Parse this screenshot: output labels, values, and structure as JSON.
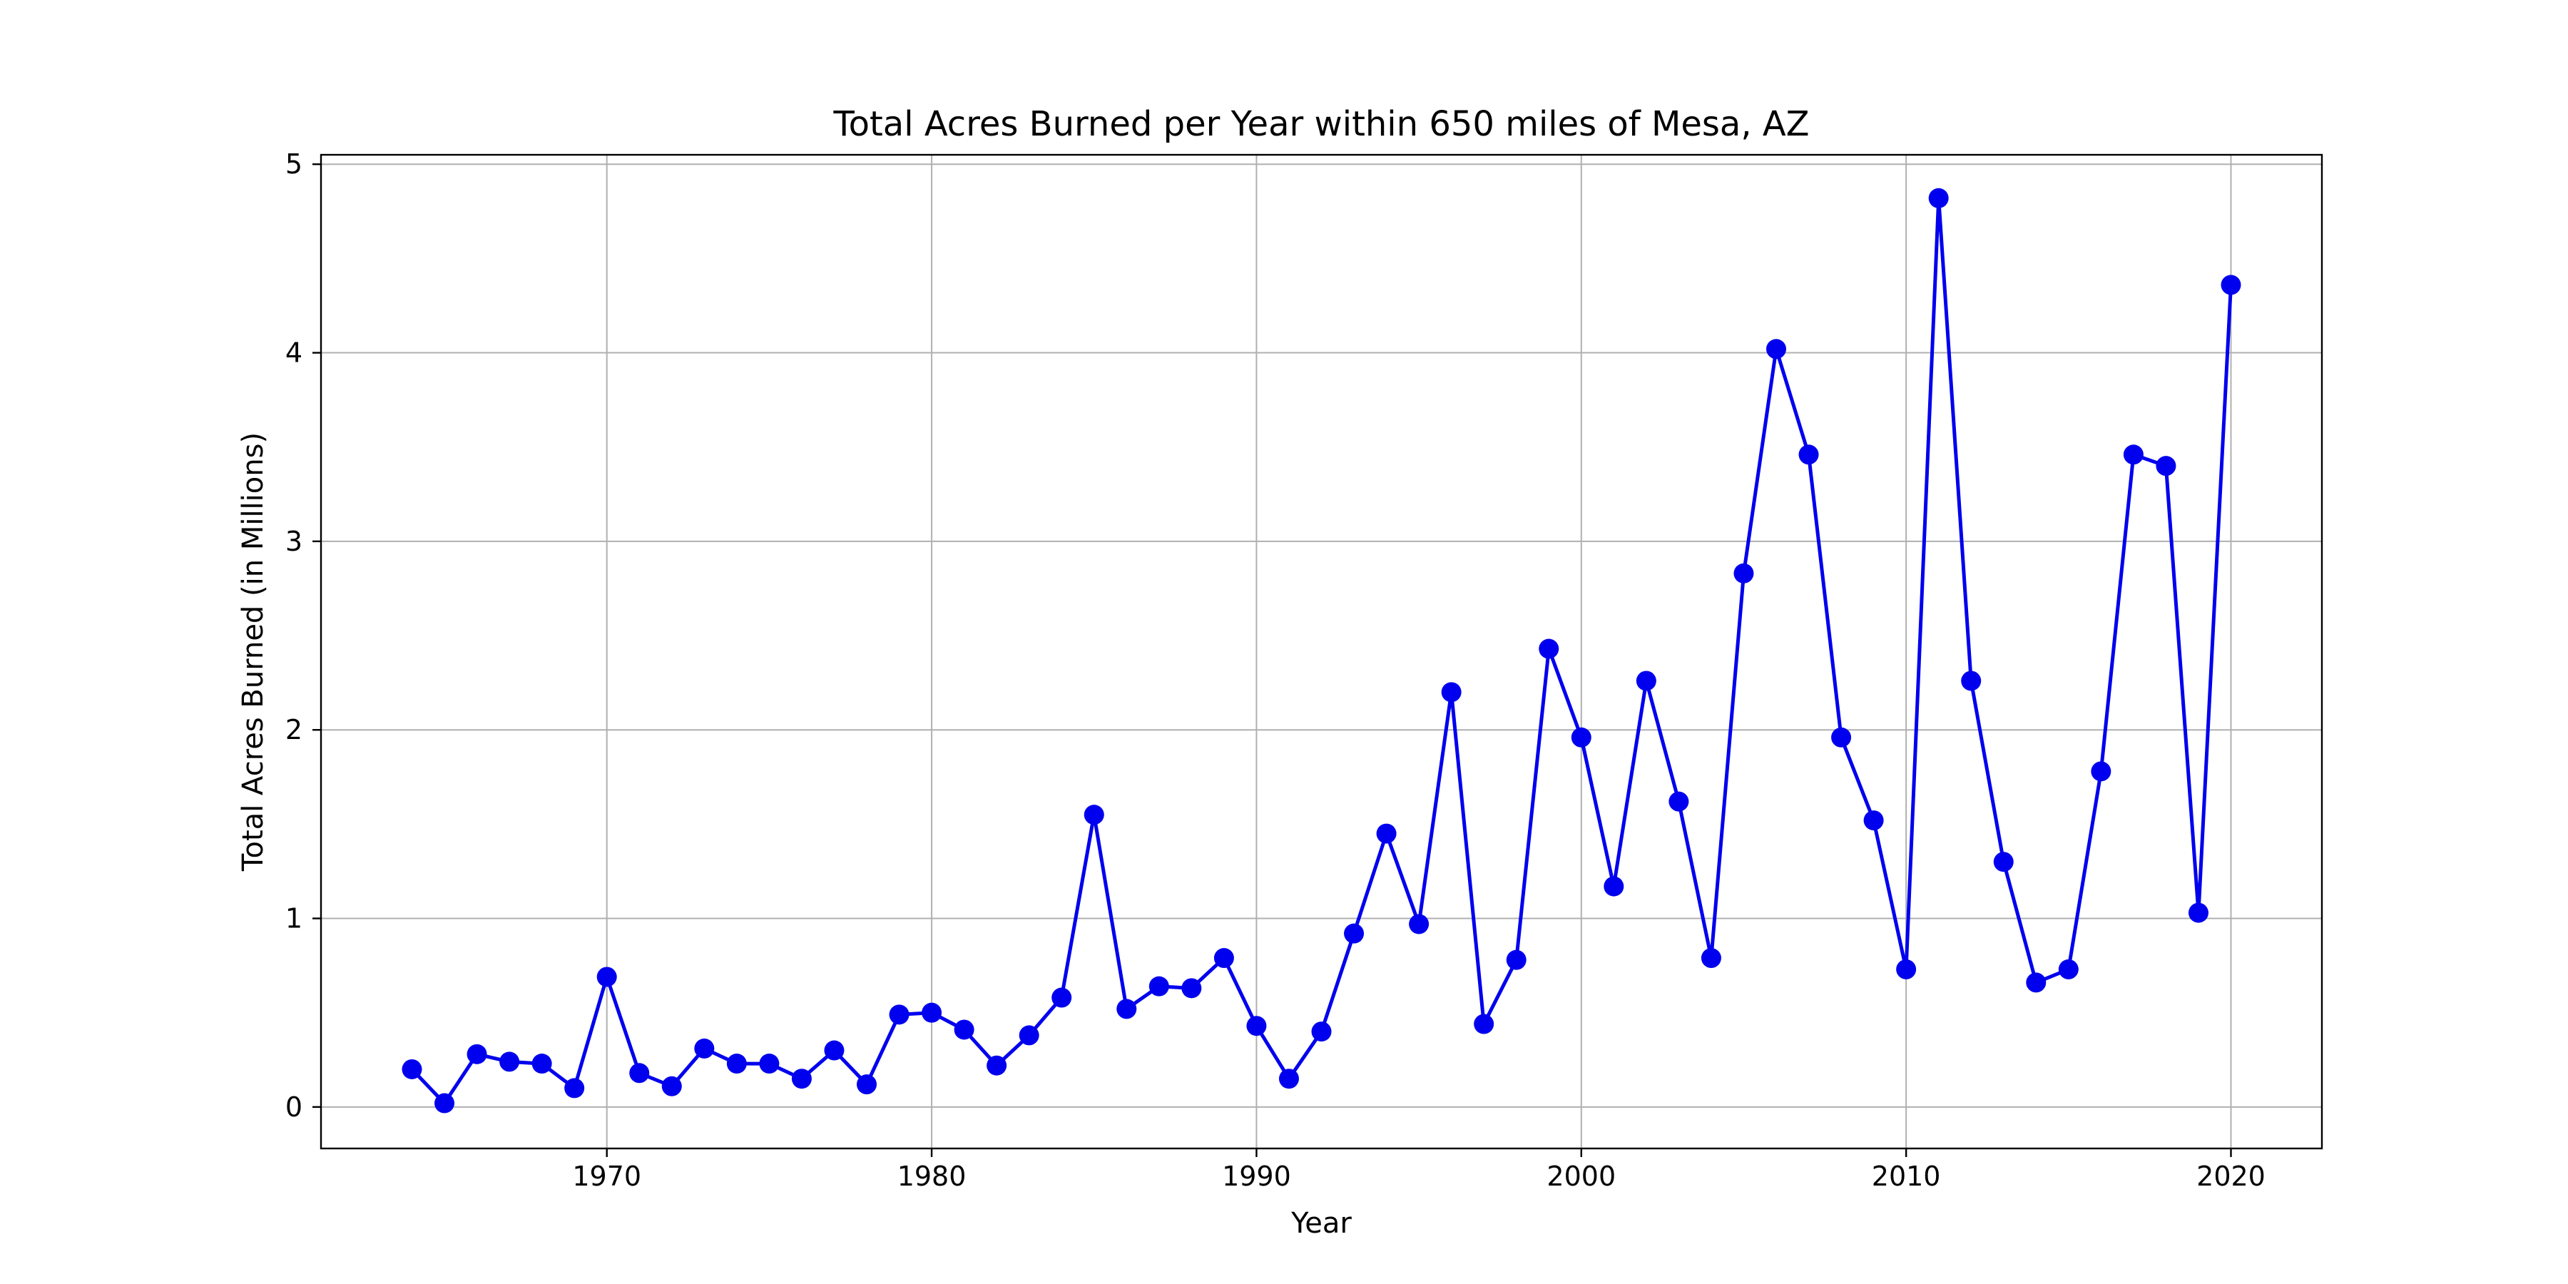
{
  "chart_data": {
    "type": "line",
    "title": "Total Acres Burned per Year within 650 miles of Mesa, AZ",
    "xlabel": "Year",
    "ylabel": "Total Acres Burned (in Millions)",
    "xlim": [
      1961.2,
      2022.8
    ],
    "ylim": [
      -0.22,
      5.05
    ],
    "xticks": [
      1970,
      1980,
      1990,
      2000,
      2010,
      2020
    ],
    "yticks": [
      0,
      1,
      2,
      3,
      4,
      5
    ],
    "grid": true,
    "line_color": "#0000ee",
    "marker_color": "#0000ee",
    "series": [
      {
        "x": [
          1964,
          1965,
          1966,
          1967,
          1968,
          1969,
          1970,
          1971,
          1972,
          1973,
          1974,
          1975,
          1976,
          1977,
          1978,
          1979,
          1980,
          1981,
          1982,
          1983,
          1984,
          1985,
          1986,
          1987,
          1988,
          1989,
          1990,
          1991,
          1992,
          1993,
          1994,
          1995,
          1996,
          1997,
          1998,
          1999,
          2000,
          2001,
          2002,
          2003,
          2004,
          2005,
          2006,
          2007,
          2008,
          2009,
          2010,
          2011,
          2012,
          2013,
          2014,
          2015,
          2016,
          2017,
          2018,
          2019,
          2020
        ],
        "values": [
          0.2,
          0.02,
          0.28,
          0.24,
          0.23,
          0.1,
          0.69,
          0.18,
          0.11,
          0.31,
          0.23,
          0.23,
          0.15,
          0.3,
          0.12,
          0.49,
          0.5,
          0.41,
          0.22,
          0.38,
          0.58,
          1.55,
          0.52,
          0.64,
          0.63,
          0.79,
          0.43,
          0.15,
          0.4,
          0.92,
          1.45,
          0.97,
          2.2,
          0.44,
          0.78,
          2.43,
          1.96,
          1.17,
          2.26,
          1.62,
          0.79,
          2.83,
          4.02,
          3.46,
          1.96,
          1.52,
          0.73,
          4.82,
          2.26,
          1.3,
          0.66,
          0.73,
          1.78,
          3.46,
          3.4,
          1.03,
          4.36
        ]
      }
    ]
  }
}
